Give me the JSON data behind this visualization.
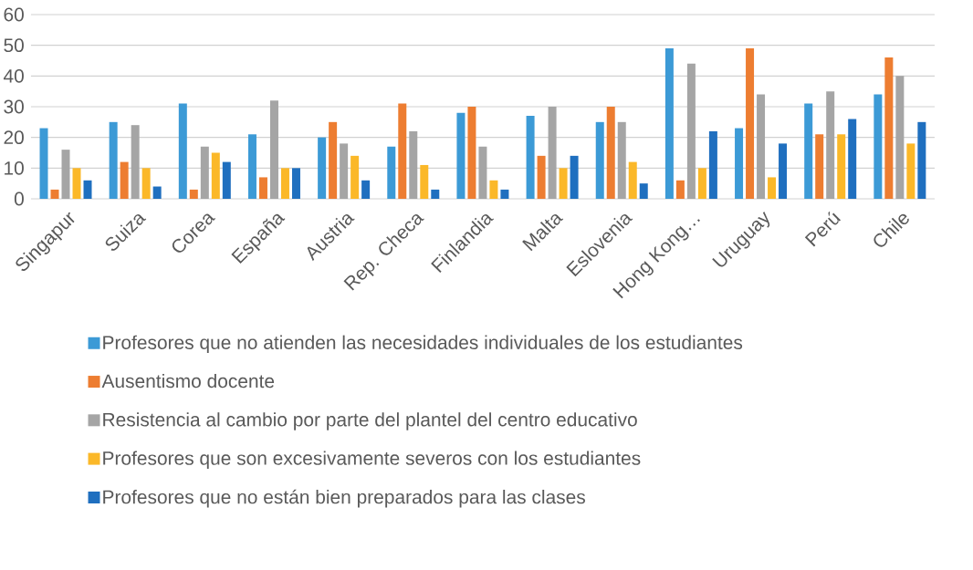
{
  "chart_data": {
    "type": "bar",
    "categories": [
      "Singapur",
      "Suiza",
      "Corea",
      "España",
      "Austria",
      "Rep. Checa",
      "Finlandia",
      "Malta",
      "Eslovenia",
      "Hong Kong…",
      "Uruguay",
      "Perú",
      "Chile"
    ],
    "series": [
      {
        "name": "Profesores que no atienden las necesidades individuales de los estudiantes",
        "color": "#3c9ad6",
        "values": [
          23,
          25,
          31,
          21,
          20,
          17,
          28,
          27,
          25,
          49,
          23,
          31,
          34
        ]
      },
      {
        "name": "Ausentismo docente",
        "color": "#ed7d31",
        "values": [
          3,
          12,
          3,
          7,
          25,
          31,
          30,
          14,
          30,
          6,
          49,
          21,
          46
        ]
      },
      {
        "name": "Resistencia al cambio por parte del plantel del centro educativo",
        "color": "#a5a5a5",
        "values": [
          16,
          24,
          17,
          32,
          18,
          22,
          17,
          30,
          25,
          44,
          34,
          35,
          40
        ]
      },
      {
        "name": "Profesores que son excesivamente severos con los estudiantes",
        "color": "#fbb829",
        "values": [
          10,
          10,
          15,
          10,
          14,
          11,
          6,
          10,
          12,
          10,
          7,
          21,
          18
        ]
      },
      {
        "name": "Profesores que no están bien preparados para las clases",
        "color": "#1f6fbf",
        "values": [
          6,
          4,
          12,
          10,
          6,
          3,
          3,
          14,
          5,
          22,
          18,
          26,
          25
        ]
      }
    ],
    "ylim": [
      0,
      60
    ],
    "yticks": [
      0,
      10,
      20,
      30,
      40,
      50,
      60
    ],
    "grid": "y",
    "legend": "bottom"
  }
}
